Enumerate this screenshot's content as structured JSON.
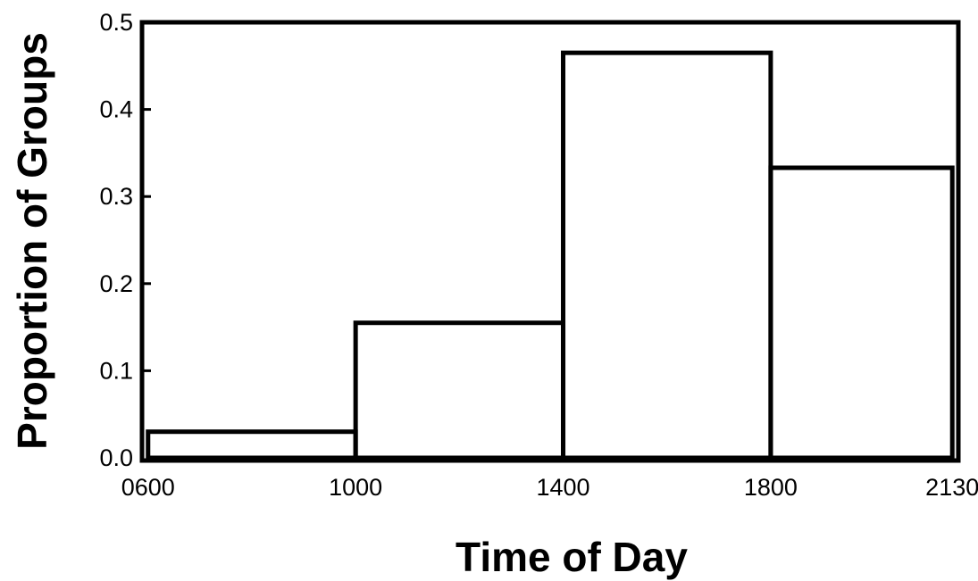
{
  "chart_data": {
    "type": "bar",
    "title": "",
    "xlabel": "Time of Day",
    "ylabel": "Proportion of Groups",
    "bin_edges": [
      "0600",
      "1000",
      "1400",
      "1800",
      "2130"
    ],
    "values": [
      0.03,
      0.155,
      0.465,
      0.333
    ],
    "ylim": [
      0,
      0.5
    ],
    "yticks": [
      "0.0",
      "0.1",
      "0.2",
      "0.3",
      "0.4",
      "0.5"
    ],
    "grid": false,
    "legend": "none"
  }
}
